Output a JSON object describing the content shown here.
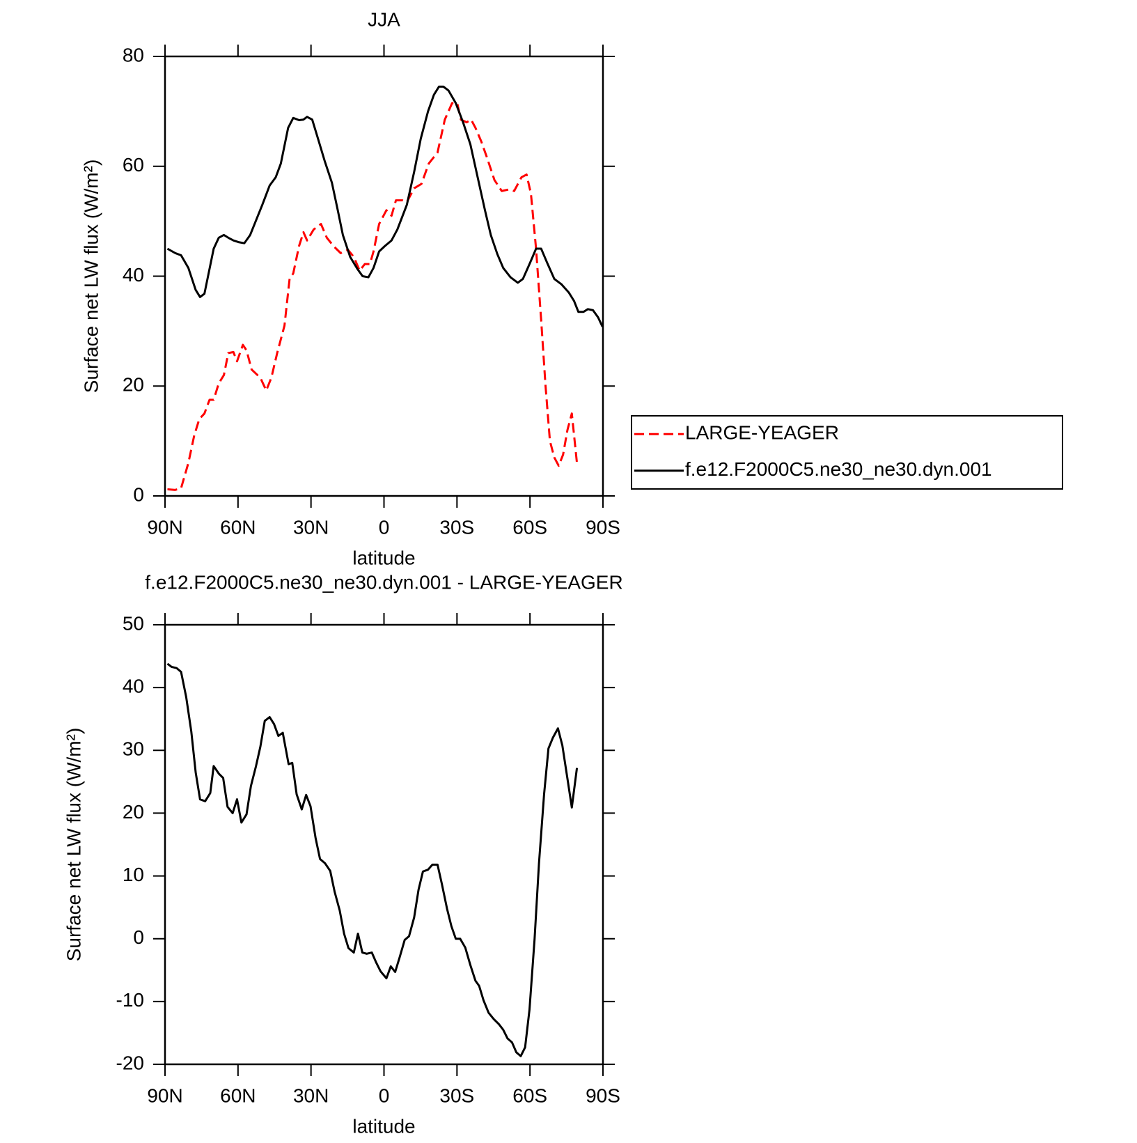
{
  "chart_data": [
    {
      "type": "line",
      "title": "JJA",
      "x_label": "latitude",
      "y_label": "Surface net LW flux (W/m²)",
      "xlim": [
        90,
        -90
      ],
      "xticks": [
        {
          "value": 90,
          "label": "90N"
        },
        {
          "value": 60,
          "label": "60N"
        },
        {
          "value": 30,
          "label": "30N"
        },
        0,
        {
          "value": -30,
          "label": "30S"
        },
        {
          "value": -60,
          "label": "60S"
        },
        {
          "value": -90,
          "label": "90S"
        }
      ],
      "ylim": [
        0,
        80
      ],
      "yticks": [
        0,
        20,
        40,
        60,
        80
      ],
      "legend": "right",
      "series": [
        {
          "name": "LARGE-YEAGER",
          "color": "#ff0000",
          "line_style": "dashed",
          "x": [
            89,
            85.8,
            83.4,
            80.4,
            78,
            75.9,
            73.8,
            71.7,
            70,
            67.9,
            65.8,
            64,
            61.9,
            60.4,
            58,
            56.5,
            54.4,
            50.8,
            48.4,
            46.3,
            43.9,
            40.9,
            38.8,
            37.3,
            34.9,
            33.1,
            31.6,
            28.9,
            25.9,
            23.5,
            20.8,
            17.8,
            14.8,
            12.4,
            10,
            7.9,
            5.8,
            4.3,
            2,
            -1,
            -3.1,
            -4.9,
            -7.6,
            -9.4,
            -12.4,
            -15.4,
            -18.4,
            -22,
            -25,
            -28,
            -30.1,
            -31.6,
            -34,
            -35.8,
            -37.6,
            -40,
            -42.4,
            -45.4,
            -48.4,
            -51.4,
            -53.5,
            -56.5,
            -58.6,
            -60.4,
            -62.5,
            -64.6,
            -66.4,
            -68.2,
            -70,
            -71.8,
            -73.6,
            -75.4,
            -77.2,
            -79.3
          ],
          "values": [
            1.2,
            1.1,
            1.4,
            6,
            11,
            14,
            15,
            17.5,
            17.5,
            20.5,
            22,
            26,
            26.2,
            24.5,
            27.5,
            26.5,
            23,
            21.5,
            19.2,
            21.5,
            26,
            31,
            39.5,
            40.5,
            45.5,
            48,
            46.5,
            48.5,
            49.5,
            47,
            45.5,
            44.2,
            44.8,
            43.5,
            41,
            42.2,
            42.2,
            44.5,
            49.5,
            52,
            51,
            53.8,
            53.8,
            53.5,
            56,
            56.8,
            60.5,
            62.5,
            68.5,
            71.5,
            71.5,
            68.5,
            68,
            68.5,
            67,
            64.5,
            61.5,
            57.5,
            55.5,
            55.8,
            55.5,
            58,
            58.5,
            55,
            45,
            32,
            20,
            10,
            7,
            5.5,
            7.5,
            12,
            15,
            6
          ]
        },
        {
          "name": "f.e12.F2000C5.ne30_ne30.dyn.001",
          "color": "#000000",
          "line_style": "solid",
          "x": [
            89,
            85.8,
            83.4,
            80.4,
            77.4,
            75.6,
            73.8,
            70,
            67.9,
            65.8,
            64,
            61.9,
            59.8,
            57.4,
            55,
            50,
            47,
            44.5,
            42.4,
            39.4,
            37.3,
            34.9,
            33.1,
            31.6,
            29.5,
            27.1,
            24.4,
            21.4,
            19,
            16.9,
            13.9,
            10.9,
            8.8,
            6.4,
            4.3,
            2,
            -0.4,
            -3.1,
            -5.5,
            -9.4,
            -12.4,
            -15.1,
            -18.1,
            -20.5,
            -22.6,
            -24.4,
            -26.5,
            -29.5,
            -32.5,
            -35.5,
            -38.5,
            -41.5,
            -43.9,
            -46.6,
            -49,
            -52,
            -55,
            -57.1,
            -60.1,
            -62.5,
            -64.6,
            -67,
            -70,
            -73,
            -76,
            -78.1,
            -79.9,
            -82,
            -83.8,
            -85.9,
            -88,
            -89.8
          ],
          "values": [
            45,
            44.2,
            43.8,
            41.5,
            37.5,
            36.2,
            36.8,
            45,
            47,
            47.5,
            47,
            46.5,
            46.2,
            46,
            47.5,
            53,
            56.5,
            58,
            60.5,
            67,
            68.8,
            68.4,
            68.5,
            69,
            68.5,
            65,
            61,
            57,
            52,
            47.5,
            43.5,
            41.3,
            40,
            39.8,
            41.5,
            44.5,
            45.5,
            46.5,
            48.5,
            53,
            59,
            65,
            70,
            73,
            74.5,
            74.5,
            73.8,
            71.5,
            68,
            64,
            58,
            52,
            47.5,
            44,
            41.5,
            39.8,
            38.8,
            39.5,
            42.5,
            45,
            45,
            42.5,
            39.5,
            38.5,
            37,
            35.5,
            33.5,
            33.5,
            34,
            33.8,
            32.5,
            30.8
          ]
        }
      ]
    },
    {
      "type": "line",
      "title": "f.e12.F2000C5.ne30_ne30.dyn.001 - LARGE-YEAGER",
      "x_label": "latitude",
      "y_label": "Surface net LW flux (W/m²)",
      "xlim": [
        90,
        -90
      ],
      "xticks": [
        {
          "value": 90,
          "label": "90N"
        },
        {
          "value": 60,
          "label": "60N"
        },
        {
          "value": 30,
          "label": "30N"
        },
        0,
        {
          "value": -30,
          "label": "30S"
        },
        {
          "value": -60,
          "label": "60S"
        },
        {
          "value": -90,
          "label": "90S"
        }
      ],
      "ylim": [
        -20,
        50
      ],
      "yticks": [
        -20,
        -10,
        0,
        10,
        20,
        30,
        40,
        50
      ],
      "color": "#000000",
      "line_style": "solid",
      "x": [
        89,
        87.3,
        85.2,
        83.4,
        81.3,
        79.2,
        77.4,
        75.6,
        73.5,
        71.4,
        70,
        67.9,
        66.1,
        64.3,
        62.2,
        60.4,
        58.6,
        56.5,
        54.7,
        52.6,
        50.8,
        49,
        47,
        45.2,
        43.4,
        41.6,
        39.2,
        37.7,
        35.9,
        33.8,
        32,
        30.2,
        28.1,
        26.3,
        24.2,
        22.1,
        20.3,
        18.2,
        16.4,
        14.6,
        12.4,
        10.7,
        8.9,
        7.1,
        5,
        3.2,
        1.4,
        -1,
        -2.8,
        -4.6,
        -6.4,
        -8.5,
        -10.3,
        -12.4,
        -14.2,
        -16,
        -18.1,
        -19.9,
        -22,
        -23.8,
        -25.9,
        -27.7,
        -29.5,
        -31.3,
        -33.4,
        -35.5,
        -37.6,
        -39.1,
        -40.9,
        -43,
        -45.1,
        -47.2,
        -49,
        -50.8,
        -52.6,
        -54.4,
        -56.2,
        -58,
        -59.8,
        -61.9,
        -63.7,
        -65.8,
        -67.6,
        -69.4,
        -71.5,
        -73.3,
        -75.4,
        -77.2,
        -79.3
      ],
      "values": [
        43.8,
        43.3,
        43.1,
        42.5,
        38.5,
        33,
        26.5,
        22.2,
        21.9,
        23.2,
        27.5,
        26.3,
        25.6,
        21,
        20,
        22.2,
        18.5,
        19.8,
        24.3,
        27.5,
        30.6,
        34.7,
        35.3,
        34.2,
        32.3,
        32.8,
        27.8,
        28,
        23,
        20.6,
        22.9,
        21.1,
        16,
        12.7,
        12,
        10.8,
        7.5,
        4.5,
        0.8,
        -1.5,
        -2.2,
        0.8,
        -2.2,
        -2.4,
        -2.2,
        -3.8,
        -5.2,
        -6.3,
        -4.4,
        -5.3,
        -3,
        -0.2,
        0.4,
        3.4,
        7.8,
        10.7,
        11,
        11.8,
        11.8,
        8.7,
        4.8,
        2,
        0,
        0,
        -1.4,
        -4.2,
        -6.7,
        -7.5,
        -9.8,
        -11.8,
        -12.8,
        -13.6,
        -14.5,
        -15.9,
        -16.5,
        -18.1,
        -18.7,
        -17.3,
        -11.3,
        0,
        12,
        23,
        30.3,
        32,
        33.5,
        30.8,
        25.5,
        20.9,
        27.2
      ]
    }
  ]
}
